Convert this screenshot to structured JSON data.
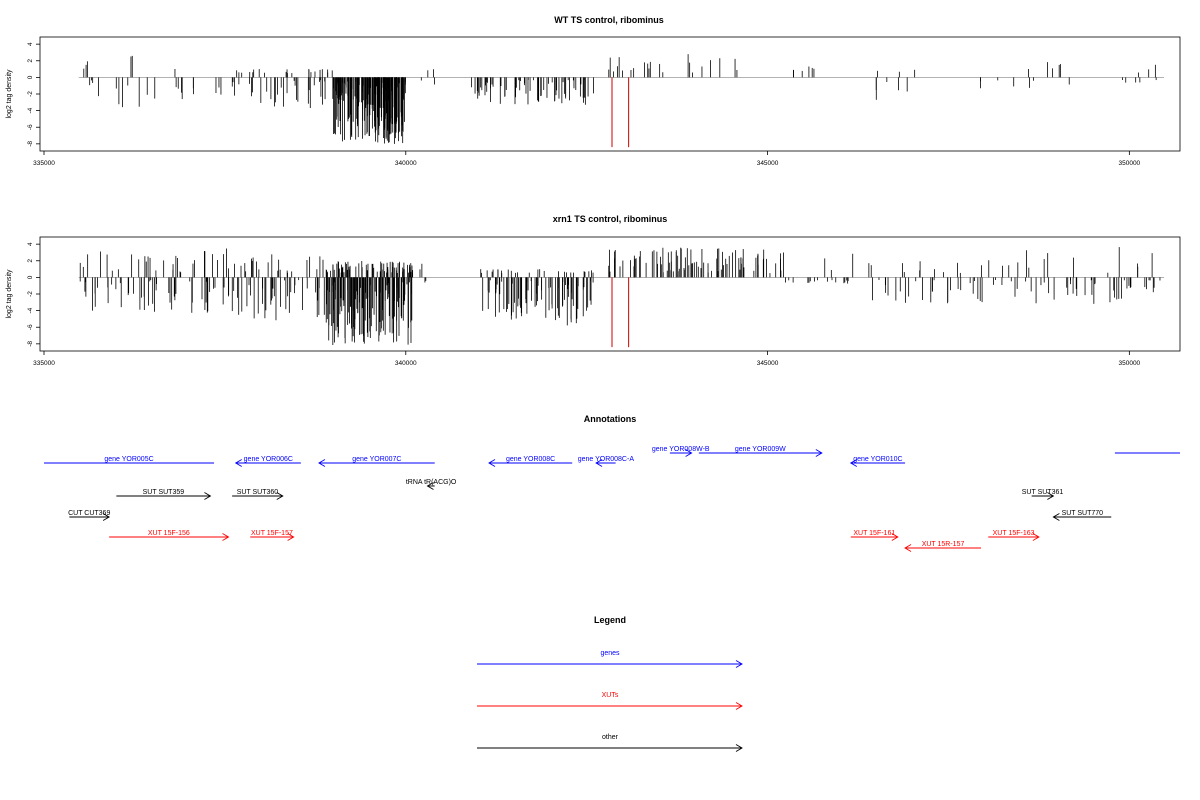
{
  "colors": {
    "gene": "#0000ff",
    "xut": "#ff0000",
    "other": "#000000",
    "marker": "#cc0000",
    "baseline": "#999999"
  },
  "chart_data": [
    {
      "type": "bar",
      "title": "WT TS control, ribominus",
      "ylabel": "log2 tag density",
      "xlim": [
        335000,
        350700
      ],
      "ylim": [
        -8.5,
        4.5
      ],
      "yticks": [
        4,
        2,
        0,
        -2,
        -4,
        -6,
        -8
      ],
      "xticks": [
        335000,
        340000,
        345000,
        350000
      ],
      "markers": [
        342850,
        343080
      ],
      "bar_segments": [
        {
          "range": [
            335550,
            335700
          ],
          "min": 0.5,
          "max": 2.4,
          "n": 6,
          "neg": 1
        },
        {
          "range": [
            335700,
            336600
          ],
          "min": 0.5,
          "max": 2.8,
          "n": 10,
          "neg": 3.5
        },
        {
          "range": [
            336600,
            337500
          ],
          "min": 0.5,
          "max": 1.6,
          "n": 10,
          "neg": 2.5
        },
        {
          "range": [
            337600,
            338800
          ],
          "min": 0.5,
          "max": 1.0,
          "n": 40,
          "neg": 3.5
        },
        {
          "range": [
            338800,
            339000
          ],
          "min": 0.5,
          "max": 1.0,
          "n": 12,
          "neg": 3.0
        },
        {
          "range": [
            339000,
            340000
          ],
          "min": 0,
          "max": 0,
          "n": 200,
          "neg": 7.8
        },
        {
          "range": [
            340200,
            340400
          ],
          "min": 0.5,
          "max": 1.0,
          "n": 4,
          "neg": 2.0
        },
        {
          "range": [
            340900,
            342600
          ],
          "min": 0,
          "max": 0,
          "n": 70,
          "neg": 3.0
        },
        {
          "range": [
            342800,
            343600
          ],
          "min": 0.5,
          "max": 2.5,
          "n": 14,
          "neg": 0
        },
        {
          "range": [
            343800,
            344600
          ],
          "min": 0.5,
          "max": 3.0,
          "n": 8,
          "neg": 0
        },
        {
          "range": [
            345300,
            345700
          ],
          "min": 0.5,
          "max": 1.5,
          "n": 6,
          "neg": 0
        },
        {
          "range": [
            346500,
            347300
          ],
          "min": 0.5,
          "max": 1.0,
          "n": 8,
          "neg": 2.5
        },
        {
          "range": [
            347900,
            349300
          ],
          "min": 0.5,
          "max": 2.0,
          "n": 12,
          "neg": 1.5
        },
        {
          "range": [
            349900,
            350450
          ],
          "min": 0.5,
          "max": 2.8,
          "n": 8,
          "neg": 0.5
        }
      ]
    },
    {
      "type": "bar",
      "title": "xrn1 TS control, ribominus",
      "ylabel": "log2 tag density",
      "xlim": [
        335000,
        350700
      ],
      "ylim": [
        -8.5,
        4.5
      ],
      "yticks": [
        4,
        2,
        0,
        -2,
        -4,
        -6,
        -8
      ],
      "xticks": [
        335000,
        340000,
        345000,
        350000
      ],
      "markers": [
        342850,
        343080
      ],
      "bar_segments": [
        {
          "range": [
            335500,
            337600
          ],
          "min": 0.5,
          "max": 3.6,
          "n": 80,
          "neg": 4.0
        },
        {
          "range": [
            337600,
            338900
          ],
          "min": 0.5,
          "max": 2.8,
          "n": 60,
          "neg": 5.0
        },
        {
          "range": [
            338900,
            340100
          ],
          "min": 0.5,
          "max": 2.0,
          "n": 220,
          "neg": 8.0
        },
        {
          "range": [
            340100,
            340300
          ],
          "min": 0.5,
          "max": 1.8,
          "n": 4,
          "neg": 1.5
        },
        {
          "range": [
            341000,
            342600
          ],
          "min": 0.5,
          "max": 1.0,
          "n": 110,
          "neg": 5.5
        },
        {
          "range": [
            342800,
            345200
          ],
          "min": 0.5,
          "max": 3.6,
          "n": 90,
          "neg": 0
        },
        {
          "range": [
            345200,
            346400
          ],
          "min": 0.5,
          "max": 3.0,
          "n": 20,
          "neg": 0.5
        },
        {
          "range": [
            346400,
            347700
          ],
          "min": 0.5,
          "max": 2.0,
          "n": 30,
          "neg": 3.0
        },
        {
          "range": [
            347700,
            349900
          ],
          "min": 0.5,
          "max": 3.8,
          "n": 50,
          "neg": 3.0
        },
        {
          "range": [
            349900,
            350450
          ],
          "min": 0.5,
          "max": 3.0,
          "n": 15,
          "neg": 1.5
        }
      ]
    }
  ],
  "annotations": {
    "title": "Annotations",
    "features": [
      {
        "label": "gene YOR005C",
        "category": "gene",
        "start": 335000,
        "end": 337350,
        "strand": "none",
        "row": 0
      },
      {
        "label": "gene YOR006C",
        "category": "gene",
        "start": 337650,
        "end": 338550,
        "strand": "-",
        "row": 0
      },
      {
        "label": "gene YOR007C",
        "category": "gene",
        "start": 338800,
        "end": 340400,
        "strand": "-",
        "row": 0
      },
      {
        "label": "gene YOR008C",
        "category": "gene",
        "start": 341150,
        "end": 342300,
        "strand": "-",
        "row": 0
      },
      {
        "label": "gene YOR008C-A",
        "category": "gene",
        "start": 342630,
        "end": 342900,
        "strand": "-",
        "row": 0
      },
      {
        "label": "gene YOR008W-B",
        "category": "gene",
        "start": 343650,
        "end": 343950,
        "strand": "+",
        "row": -1
      },
      {
        "label": "gene YOR009W",
        "category": "gene",
        "start": 344050,
        "end": 345750,
        "strand": "+",
        "row": -1
      },
      {
        "label": "gene YOR010C",
        "category": "gene",
        "start": 346150,
        "end": 346900,
        "strand": "-",
        "row": 0
      },
      {
        "label": "",
        "category": "gene",
        "start": 349800,
        "end": 350700,
        "strand": "none",
        "row": -1
      },
      {
        "label": "tRNA tR(ACG)O",
        "category": "other",
        "start": 340300,
        "end": 340400,
        "strand": "-",
        "row": 1
      },
      {
        "label": "SUT SUT359",
        "category": "other",
        "start": 336000,
        "end": 337300,
        "strand": "+",
        "row": 2
      },
      {
        "label": "SUT SUT360",
        "category": "other",
        "start": 337600,
        "end": 338300,
        "strand": "+",
        "row": 2
      },
      {
        "label": "SUT SUT361",
        "category": "other",
        "start": 348650,
        "end": 348950,
        "strand": "+",
        "row": 2
      },
      {
        "label": "SUT SUT770",
        "category": "other",
        "start": 348950,
        "end": 349750,
        "strand": "-",
        "row": 3
      },
      {
        "label": "CUT CUT369",
        "category": "other",
        "start": 335350,
        "end": 335900,
        "strand": "+",
        "row": 3
      },
      {
        "label": "XUT 15F-156",
        "category": "xut",
        "start": 335900,
        "end": 337550,
        "strand": "+",
        "row": 4
      },
      {
        "label": "XUT 15F-157",
        "category": "xut",
        "start": 337850,
        "end": 338450,
        "strand": "+",
        "row": 4
      },
      {
        "label": "XUT 15F-161",
        "category": "xut",
        "start": 346150,
        "end": 346800,
        "strand": "+",
        "row": 4
      },
      {
        "label": "XUT 15R-157",
        "category": "xut",
        "start": 346900,
        "end": 347950,
        "strand": "-",
        "row": 5
      },
      {
        "label": "XUT 15F-163",
        "category": "xut",
        "start": 348050,
        "end": 348750,
        "strand": "+",
        "row": 4
      }
    ]
  },
  "legend": {
    "title": "Legend",
    "items": [
      {
        "label": "genes",
        "category": "gene"
      },
      {
        "label": "XUTs",
        "category": "xut"
      },
      {
        "label": "other",
        "category": "other"
      }
    ]
  }
}
